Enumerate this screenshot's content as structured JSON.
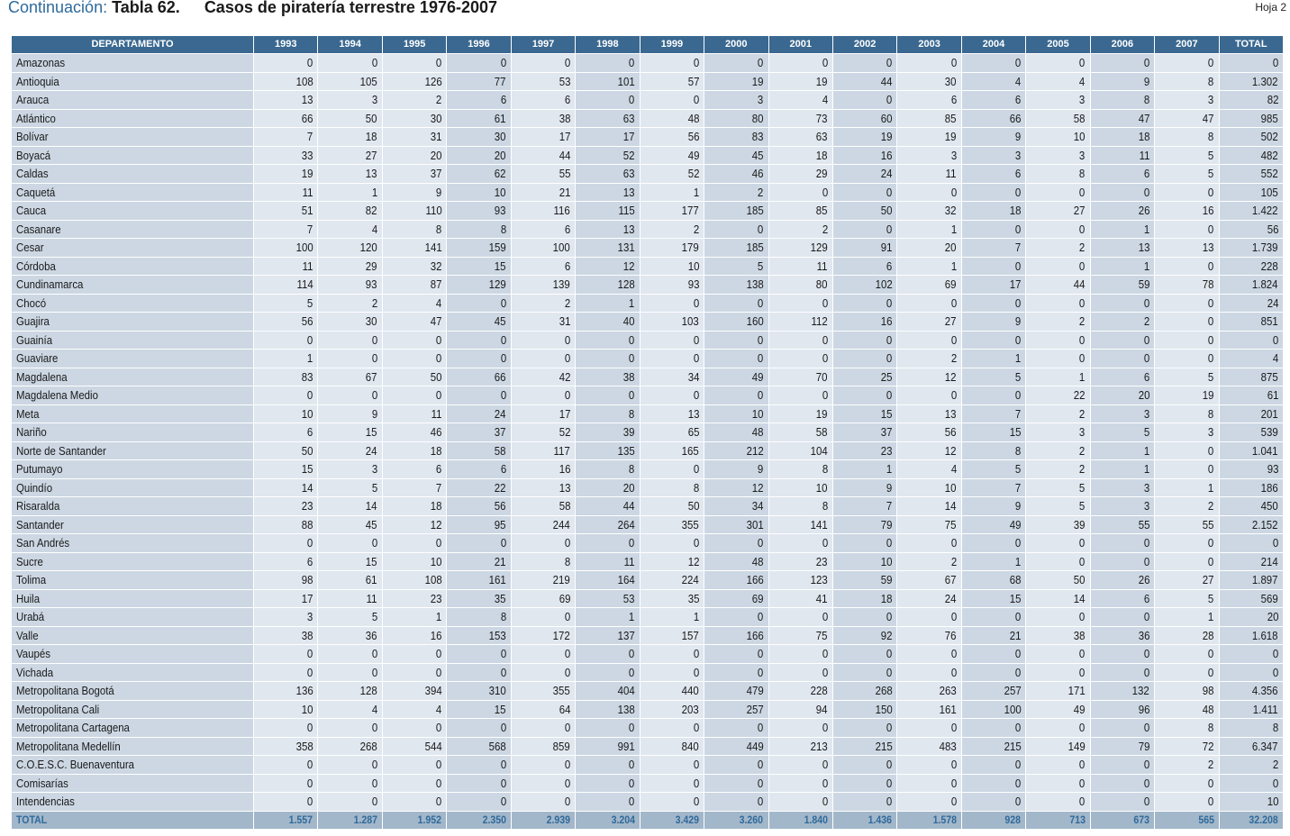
{
  "header": {
    "prefix": "Continuación:",
    "table_number": "Tabla 62.",
    "title": "Casos de piratería terrestre 1976-2007",
    "sheet": "Hoja 2"
  },
  "table": {
    "columns": [
      "DEPARTAMENTO",
      "1993",
      "1994",
      "1995",
      "1996",
      "1997",
      "1998",
      "1999",
      "2000",
      "2001",
      "2002",
      "2003",
      "2004",
      "2005",
      "2006",
      "2007",
      "TOTAL"
    ],
    "rows": [
      [
        "Amazonas",
        "0",
        "0",
        "0",
        "0",
        "0",
        "0",
        "0",
        "0",
        "0",
        "0",
        "0",
        "0",
        "0",
        "0",
        "0",
        "0"
      ],
      [
        "Antioquia",
        "108",
        "105",
        "126",
        "77",
        "53",
        "101",
        "57",
        "19",
        "19",
        "44",
        "30",
        "4",
        "4",
        "9",
        "8",
        "1.302"
      ],
      [
        "Arauca",
        "13",
        "3",
        "2",
        "6",
        "6",
        "0",
        "0",
        "3",
        "4",
        "0",
        "6",
        "6",
        "3",
        "8",
        "3",
        "82"
      ],
      [
        "Atlántico",
        "66",
        "50",
        "30",
        "61",
        "38",
        "63",
        "48",
        "80",
        "73",
        "60",
        "85",
        "66",
        "58",
        "47",
        "47",
        "985"
      ],
      [
        "Bolívar",
        "7",
        "18",
        "31",
        "30",
        "17",
        "17",
        "56",
        "83",
        "63",
        "19",
        "19",
        "9",
        "10",
        "18",
        "8",
        "502"
      ],
      [
        "Boyacá",
        "33",
        "27",
        "20",
        "20",
        "44",
        "52",
        "49",
        "45",
        "18",
        "16",
        "3",
        "3",
        "3",
        "11",
        "5",
        "482"
      ],
      [
        "Caldas",
        "19",
        "13",
        "37",
        "62",
        "55",
        "63",
        "52",
        "46",
        "29",
        "24",
        "11",
        "6",
        "8",
        "6",
        "5",
        "552"
      ],
      [
        "Caquetá",
        "11",
        "1",
        "9",
        "10",
        "21",
        "13",
        "1",
        "2",
        "0",
        "0",
        "0",
        "0",
        "0",
        "0",
        "0",
        "105"
      ],
      [
        "Cauca",
        "51",
        "82",
        "110",
        "93",
        "116",
        "115",
        "177",
        "185",
        "85",
        "50",
        "32",
        "18",
        "27",
        "26",
        "16",
        "1.422"
      ],
      [
        "Casanare",
        "7",
        "4",
        "8",
        "8",
        "6",
        "13",
        "2",
        "0",
        "2",
        "0",
        "1",
        "0",
        "0",
        "1",
        "0",
        "56"
      ],
      [
        "Cesar",
        "100",
        "120",
        "141",
        "159",
        "100",
        "131",
        "179",
        "185",
        "129",
        "91",
        "20",
        "7",
        "2",
        "13",
        "13",
        "1.739"
      ],
      [
        "Córdoba",
        "11",
        "29",
        "32",
        "15",
        "6",
        "12",
        "10",
        "5",
        "11",
        "6",
        "1",
        "0",
        "0",
        "1",
        "0",
        "228"
      ],
      [
        "Cundinamarca",
        "114",
        "93",
        "87",
        "129",
        "139",
        "128",
        "93",
        "138",
        "80",
        "102",
        "69",
        "17",
        "44",
        "59",
        "78",
        "1.824"
      ],
      [
        "Chocó",
        "5",
        "2",
        "4",
        "0",
        "2",
        "1",
        "0",
        "0",
        "0",
        "0",
        "0",
        "0",
        "0",
        "0",
        "0",
        "24"
      ],
      [
        "Guajira",
        "56",
        "30",
        "47",
        "45",
        "31",
        "40",
        "103",
        "160",
        "112",
        "16",
        "27",
        "9",
        "2",
        "2",
        "0",
        "851"
      ],
      [
        "Guainía",
        "0",
        "0",
        "0",
        "0",
        "0",
        "0",
        "0",
        "0",
        "0",
        "0",
        "0",
        "0",
        "0",
        "0",
        "0",
        "0"
      ],
      [
        "Guaviare",
        "1",
        "0",
        "0",
        "0",
        "0",
        "0",
        "0",
        "0",
        "0",
        "0",
        "2",
        "1",
        "0",
        "0",
        "0",
        "4"
      ],
      [
        "Magdalena",
        "83",
        "67",
        "50",
        "66",
        "42",
        "38",
        "34",
        "49",
        "70",
        "25",
        "12",
        "5",
        "1",
        "6",
        "5",
        "875"
      ],
      [
        "Magdalena Medio",
        "0",
        "0",
        "0",
        "0",
        "0",
        "0",
        "0",
        "0",
        "0",
        "0",
        "0",
        "0",
        "22",
        "20",
        "19",
        "61"
      ],
      [
        "Meta",
        "10",
        "9",
        "11",
        "24",
        "17",
        "8",
        "13",
        "10",
        "19",
        "15",
        "13",
        "7",
        "2",
        "3",
        "8",
        "201"
      ],
      [
        "Nariño",
        "6",
        "15",
        "46",
        "37",
        "52",
        "39",
        "65",
        "48",
        "58",
        "37",
        "56",
        "15",
        "3",
        "5",
        "3",
        "539"
      ],
      [
        "Norte de Santander",
        "50",
        "24",
        "18",
        "58",
        "117",
        "135",
        "165",
        "212",
        "104",
        "23",
        "12",
        "8",
        "2",
        "1",
        "0",
        "1.041"
      ],
      [
        "Putumayo",
        "15",
        "3",
        "6",
        "6",
        "16",
        "8",
        "0",
        "9",
        "8",
        "1",
        "4",
        "5",
        "2",
        "1",
        "0",
        "93"
      ],
      [
        "Quindío",
        "14",
        "5",
        "7",
        "22",
        "13",
        "20",
        "8",
        "12",
        "10",
        "9",
        "10",
        "7",
        "5",
        "3",
        "1",
        "186"
      ],
      [
        "Risaralda",
        "23",
        "14",
        "18",
        "56",
        "58",
        "44",
        "50",
        "34",
        "8",
        "7",
        "14",
        "9",
        "5",
        "3",
        "2",
        "450"
      ],
      [
        "Santander",
        "88",
        "45",
        "12",
        "95",
        "244",
        "264",
        "355",
        "301",
        "141",
        "79",
        "75",
        "49",
        "39",
        "55",
        "55",
        "2.152"
      ],
      [
        "San Andrés",
        "0",
        "0",
        "0",
        "0",
        "0",
        "0",
        "0",
        "0",
        "0",
        "0",
        "0",
        "0",
        "0",
        "0",
        "0",
        "0"
      ],
      [
        "Sucre",
        "6",
        "15",
        "10",
        "21",
        "8",
        "11",
        "12",
        "48",
        "23",
        "10",
        "2",
        "1",
        "0",
        "0",
        "0",
        "214"
      ],
      [
        "Tolima",
        "98",
        "61",
        "108",
        "161",
        "219",
        "164",
        "224",
        "166",
        "123",
        "59",
        "67",
        "68",
        "50",
        "26",
        "27",
        "1.897"
      ],
      [
        "Huila",
        "17",
        "11",
        "23",
        "35",
        "69",
        "53",
        "35",
        "69",
        "41",
        "18",
        "24",
        "15",
        "14",
        "6",
        "5",
        "569"
      ],
      [
        "Urabá",
        "3",
        "5",
        "1",
        "8",
        "0",
        "1",
        "1",
        "0",
        "0",
        "0",
        "0",
        "0",
        "0",
        "0",
        "1",
        "20"
      ],
      [
        "Valle",
        "38",
        "36",
        "16",
        "153",
        "172",
        "137",
        "157",
        "166",
        "75",
        "92",
        "76",
        "21",
        "38",
        "36",
        "28",
        "1.618"
      ],
      [
        "Vaupés",
        "0",
        "0",
        "0",
        "0",
        "0",
        "0",
        "0",
        "0",
        "0",
        "0",
        "0",
        "0",
        "0",
        "0",
        "0",
        "0"
      ],
      [
        "Vichada",
        "0",
        "0",
        "0",
        "0",
        "0",
        "0",
        "0",
        "0",
        "0",
        "0",
        "0",
        "0",
        "0",
        "0",
        "0",
        "0"
      ],
      [
        "Metropolitana Bogotá",
        "136",
        "128",
        "394",
        "310",
        "355",
        "404",
        "440",
        "479",
        "228",
        "268",
        "263",
        "257",
        "171",
        "132",
        "98",
        "4.356"
      ],
      [
        "Metropolitana Cali",
        "10",
        "4",
        "4",
        "15",
        "64",
        "138",
        "203",
        "257",
        "94",
        "150",
        "161",
        "100",
        "49",
        "96",
        "48",
        "1.411"
      ],
      [
        "Metropolitana Cartagena",
        "0",
        "0",
        "0",
        "0",
        "0",
        "0",
        "0",
        "0",
        "0",
        "0",
        "0",
        "0",
        "0",
        "0",
        "8",
        "8"
      ],
      [
        "Metropolitana Medellín",
        "358",
        "268",
        "544",
        "568",
        "859",
        "991",
        "840",
        "449",
        "213",
        "215",
        "483",
        "215",
        "149",
        "79",
        "72",
        "6.347"
      ],
      [
        "C.O.E.S.C. Buenaventura",
        "0",
        "0",
        "0",
        "0",
        "0",
        "0",
        "0",
        "0",
        "0",
        "0",
        "0",
        "0",
        "0",
        "0",
        "2",
        "2"
      ],
      [
        "Comisarías",
        "0",
        "0",
        "0",
        "0",
        "0",
        "0",
        "0",
        "0",
        "0",
        "0",
        "0",
        "0",
        "0",
        "0",
        "0",
        "0"
      ],
      [
        "Intendencias",
        "0",
        "0",
        "0",
        "0",
        "0",
        "0",
        "0",
        "0",
        "0",
        "0",
        "0",
        "0",
        "0",
        "0",
        "0",
        "10"
      ]
    ],
    "total_row": [
      "TOTAL",
      "1.557",
      "1.287",
      "1.952",
      "2.350",
      "2.939",
      "3.204",
      "3.429",
      "3.260",
      "1.840",
      "1.436",
      "1.578",
      "928",
      "713",
      "673",
      "565",
      "32.208"
    ]
  },
  "colors": {
    "header_bg": "#3a6890",
    "cell_light": "#e0e7ef",
    "cell_dark": "#ccd7e3",
    "total_bg": "#a3b7ca",
    "accent": "#2f6a9b"
  }
}
